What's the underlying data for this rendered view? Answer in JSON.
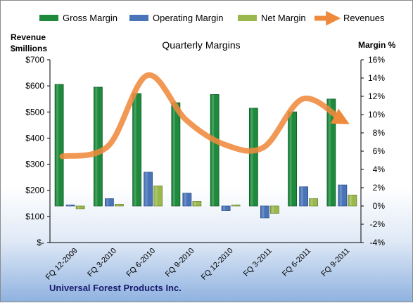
{
  "chart_data": {
    "type": "bar",
    "title": "Quarterly Margins",
    "y_left_label_line1": "Revenue",
    "y_left_label_line2": "$millions",
    "y_right_label": "Margin %",
    "y_left_ticks": [
      "$-",
      "$100",
      "$200",
      "$300",
      "$400",
      "$500",
      "$600",
      "$700"
    ],
    "y_right_ticks": [
      "-4%",
      "-2%",
      "0%",
      "2%",
      "4%",
      "6%",
      "8%",
      "10%",
      "12%",
      "14%",
      "16%"
    ],
    "ylim_left": [
      0,
      700
    ],
    "ylim_right": [
      -4,
      16
    ],
    "categories": [
      "FQ 12-2009",
      "FQ 3-2010",
      "FQ 6-2010",
      "FQ 9-2010",
      "FQ 12-2010",
      "FQ 3-2011",
      "FQ 6-2011",
      "FQ 9-2011"
    ],
    "series": [
      {
        "name": "Gross Margin",
        "axis": "right",
        "kind": "bar",
        "color": "#1e8a3c",
        "values": [
          13.3,
          13.0,
          12.3,
          11.3,
          12.2,
          10.7,
          10.3,
          11.7
        ]
      },
      {
        "name": "Operating Margin",
        "axis": "right",
        "kind": "bar",
        "color": "#4a74b8",
        "values": [
          0.1,
          0.8,
          3.7,
          1.4,
          -0.5,
          -1.3,
          2.1,
          2.3
        ]
      },
      {
        "name": "Net Margin",
        "axis": "right",
        "kind": "bar",
        "color": "#9ab84e",
        "values": [
          -0.3,
          0.2,
          2.2,
          0.5,
          0.1,
          -0.8,
          0.8,
          1.2
        ]
      },
      {
        "name": "Revenues",
        "axis": "left",
        "kind": "line",
        "color": "#ef8a3c",
        "values": [
          330,
          370,
          640,
          470,
          375,
          365,
          550,
          470
        ]
      }
    ],
    "grid": false,
    "legend_position": "top",
    "footer": "Universal Forest Products  Inc."
  }
}
